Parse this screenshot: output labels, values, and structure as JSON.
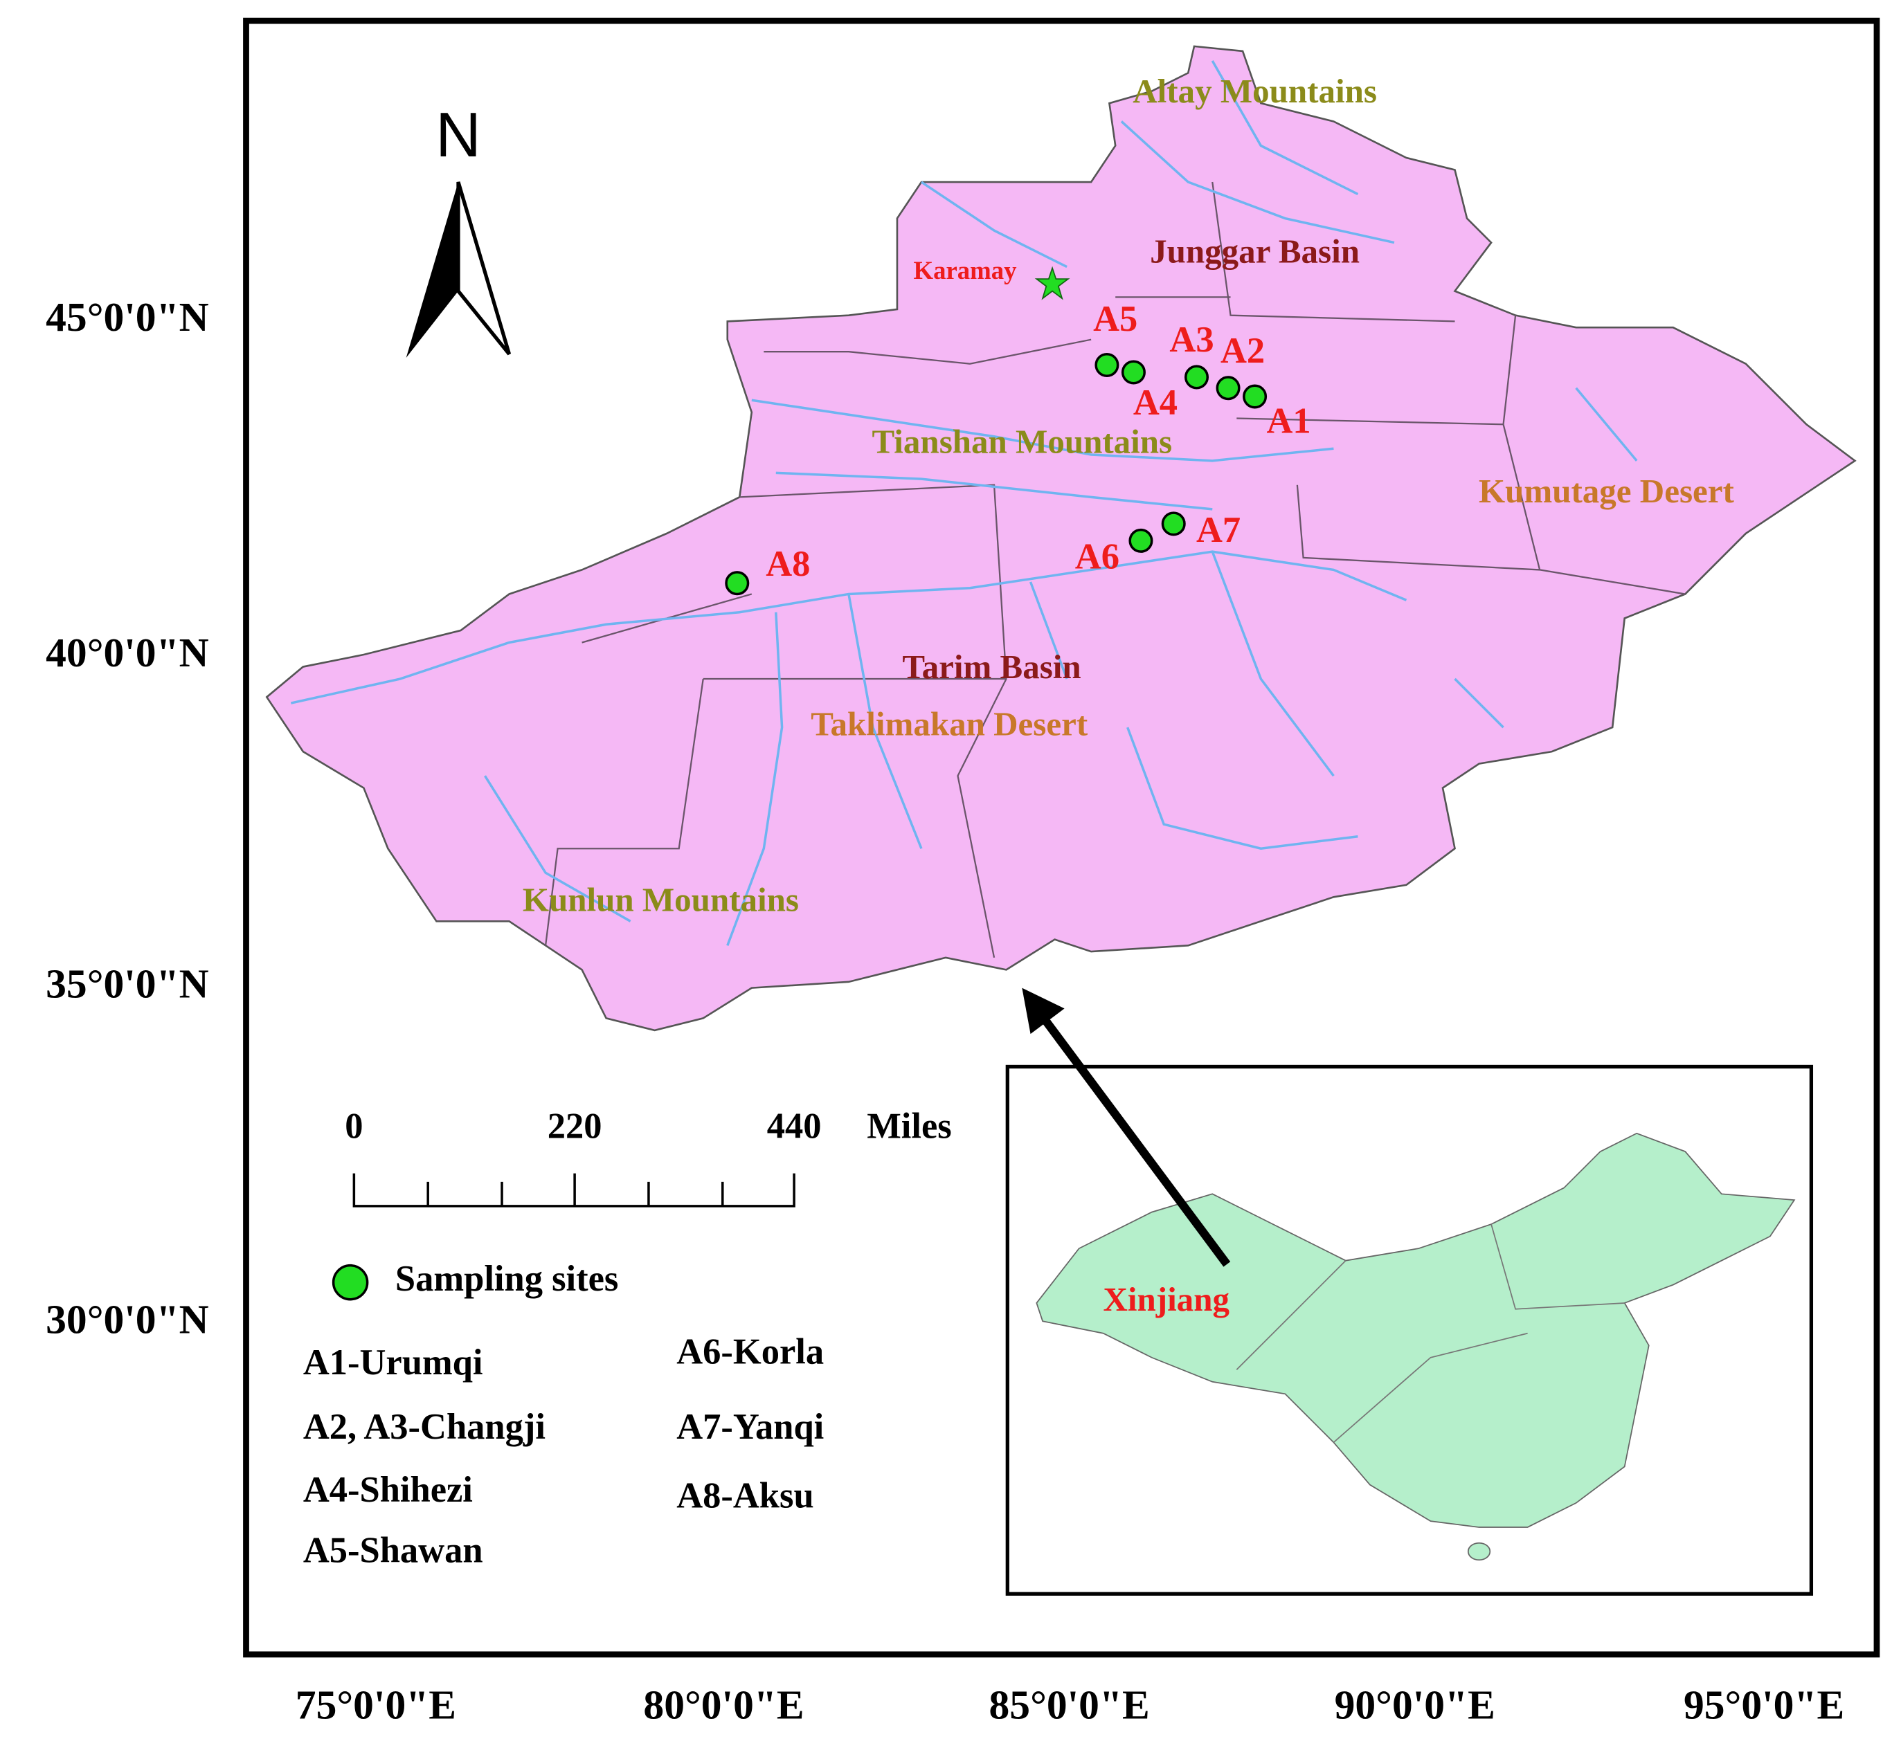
{
  "map": {
    "axes": {
      "longitude_labels": [
        "75°0'0\"E",
        "80°0'0\"E",
        "85°0'0\"E",
        "90°0'0\"E",
        "95°0'0\"E"
      ],
      "latitude_labels": [
        "45°0'0\"N",
        "40°0'0\"N",
        "35°0'0\"N",
        "30°0'0\"N"
      ]
    },
    "north": "N",
    "regions": [
      "Altay Mountains",
      "Junggar Basin",
      "Tianshan Mountains",
      "Kumutage Desert",
      "Tarim Basin",
      "Taklimakan Desert",
      "Kunlun Mountains"
    ],
    "city": "Karamay",
    "sites": [
      "A1",
      "A2",
      "A3",
      "A4",
      "A5",
      "A6",
      "A7",
      "A8"
    ],
    "scale_bar": {
      "labels": [
        "0",
        "220",
        "440"
      ],
      "unit": "Miles"
    },
    "legend": {
      "symbol_label": "Sampling sites",
      "entries": [
        "A1-Urumqi",
        "A2, A3-Changji",
        "A4-Shihezi",
        "A5-Shawan",
        "A6-Korla",
        "A7-Yanqi",
        "A8-Aksu"
      ]
    },
    "inset": {
      "label": "Xinjiang"
    }
  }
}
